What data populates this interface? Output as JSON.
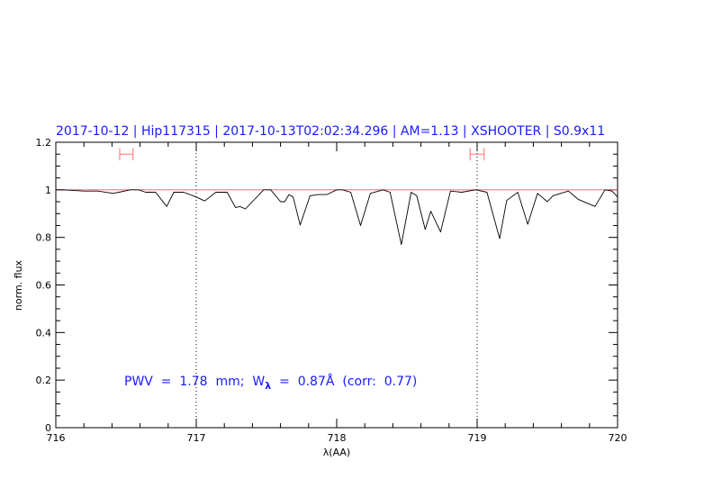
{
  "chart_data": {
    "type": "line",
    "title": "2017-10-12 | Hip117315 | 2017-10-13T02:02:34.296 | AM=1.13 | XSHOOTER | S0.9x11",
    "xlabel": "λ(AA)",
    "ylabel": "norm. flux",
    "xlim": [
      716,
      720
    ],
    "ylim": [
      0,
      1.2
    ],
    "xticks": [
      "716",
      "717",
      "718",
      "719",
      "720"
    ],
    "yticks": [
      "0",
      "0.2",
      "0.4",
      "0.6",
      "0.8",
      "1",
      "1.2"
    ],
    "grid": false,
    "reference_line": {
      "y": 1,
      "color": "#e06060"
    },
    "vertical_dotted_lines": [
      717,
      719
    ],
    "range_markers": [
      {
        "x": [
          716.455,
          716.55
        ],
        "y": 1.15,
        "color": "#ff7070"
      },
      {
        "x": [
          718.95,
          719.05
        ],
        "y": 1.15,
        "color": "#ff7070"
      }
    ],
    "series": [
      {
        "color": "#000000",
        "x": [
          716.0,
          716.05,
          716.2,
          716.3,
          716.41,
          716.45,
          716.53,
          716.59,
          716.64,
          716.71,
          716.79,
          716.84,
          716.91,
          717.0,
          717.06,
          717.14,
          717.22,
          717.28,
          717.31,
          717.35,
          717.48,
          717.53,
          717.6,
          717.63,
          717.66,
          717.69,
          717.74,
          717.81,
          717.87,
          717.93,
          718.0,
          718.04,
          718.1,
          718.17,
          718.24,
          718.33,
          718.38,
          718.46,
          718.53,
          718.57,
          718.63,
          718.67,
          718.74,
          718.81,
          718.89,
          718.99,
          719.07,
          719.16,
          719.21,
          719.29,
          719.36,
          719.43,
          719.5,
          719.54,
          719.65,
          719.72,
          719.84,
          719.91,
          719.96,
          720.0
        ],
        "y": [
          1.0,
          1.0,
          0.995,
          0.995,
          0.985,
          0.99,
          1.0,
          1.0,
          0.99,
          0.99,
          0.93,
          0.99,
          0.99,
          0.97,
          0.953,
          0.99,
          0.99,
          0.925,
          0.93,
          0.92,
          1.0,
          1.0,
          0.95,
          0.95,
          0.98,
          0.97,
          0.852,
          0.975,
          0.98,
          0.98,
          1.0,
          1.0,
          0.99,
          0.85,
          0.985,
          1.0,
          0.99,
          0.77,
          0.99,
          0.975,
          0.833,
          0.91,
          0.823,
          0.995,
          0.99,
          1.0,
          0.99,
          0.795,
          0.955,
          0.99,
          0.855,
          0.985,
          0.95,
          0.975,
          0.995,
          0.96,
          0.93,
          1.0,
          0.995,
          0.97
        ]
      }
    ],
    "annotation": {
      "prefix": "PWV  =  1.78  mm;  W",
      "subscript": "λ",
      "suffix": "  =  0.87Å  (corr:  0.77)",
      "color": "#1a1aff"
    }
  }
}
